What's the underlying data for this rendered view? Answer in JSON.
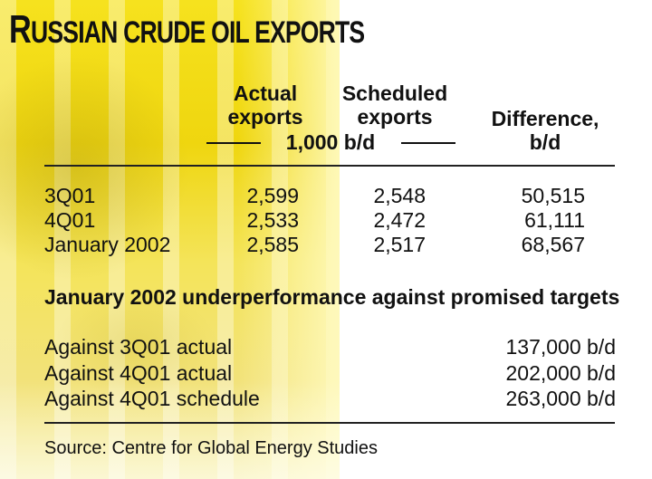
{
  "title": "Russian crude oil exports",
  "chart_data": {
    "type": "table",
    "title": "Russian crude oil exports",
    "column_headers": {
      "actual": [
        "Actual",
        "exports"
      ],
      "scheduled": [
        "Scheduled",
        "exports"
      ],
      "units": "1,000 b/d",
      "difference": [
        "Difference,",
        "b/d"
      ]
    },
    "rows": [
      {
        "label": "3Q01",
        "actual": "2,599",
        "scheduled": "2,548",
        "difference": "50,515"
      },
      {
        "label": "4Q01",
        "actual": "2,533",
        "scheduled": "2,472",
        "difference": "61,111"
      },
      {
        "label": "January 2002",
        "actual": "2,585",
        "scheduled": "2,517",
        "difference": "68,567"
      }
    ],
    "underperformance_heading": "January 2002 underperformance against promised targets",
    "underperformance": [
      {
        "label": "Against 3Q01 actual",
        "value": "137,000 b/d"
      },
      {
        "label": "Against 4Q01 actual",
        "value": "202,000 b/d"
      },
      {
        "label": "Against 4Q01 schedule",
        "value": "263,000 b/d"
      }
    ],
    "source": "Source: Centre for Global Energy Studies"
  }
}
